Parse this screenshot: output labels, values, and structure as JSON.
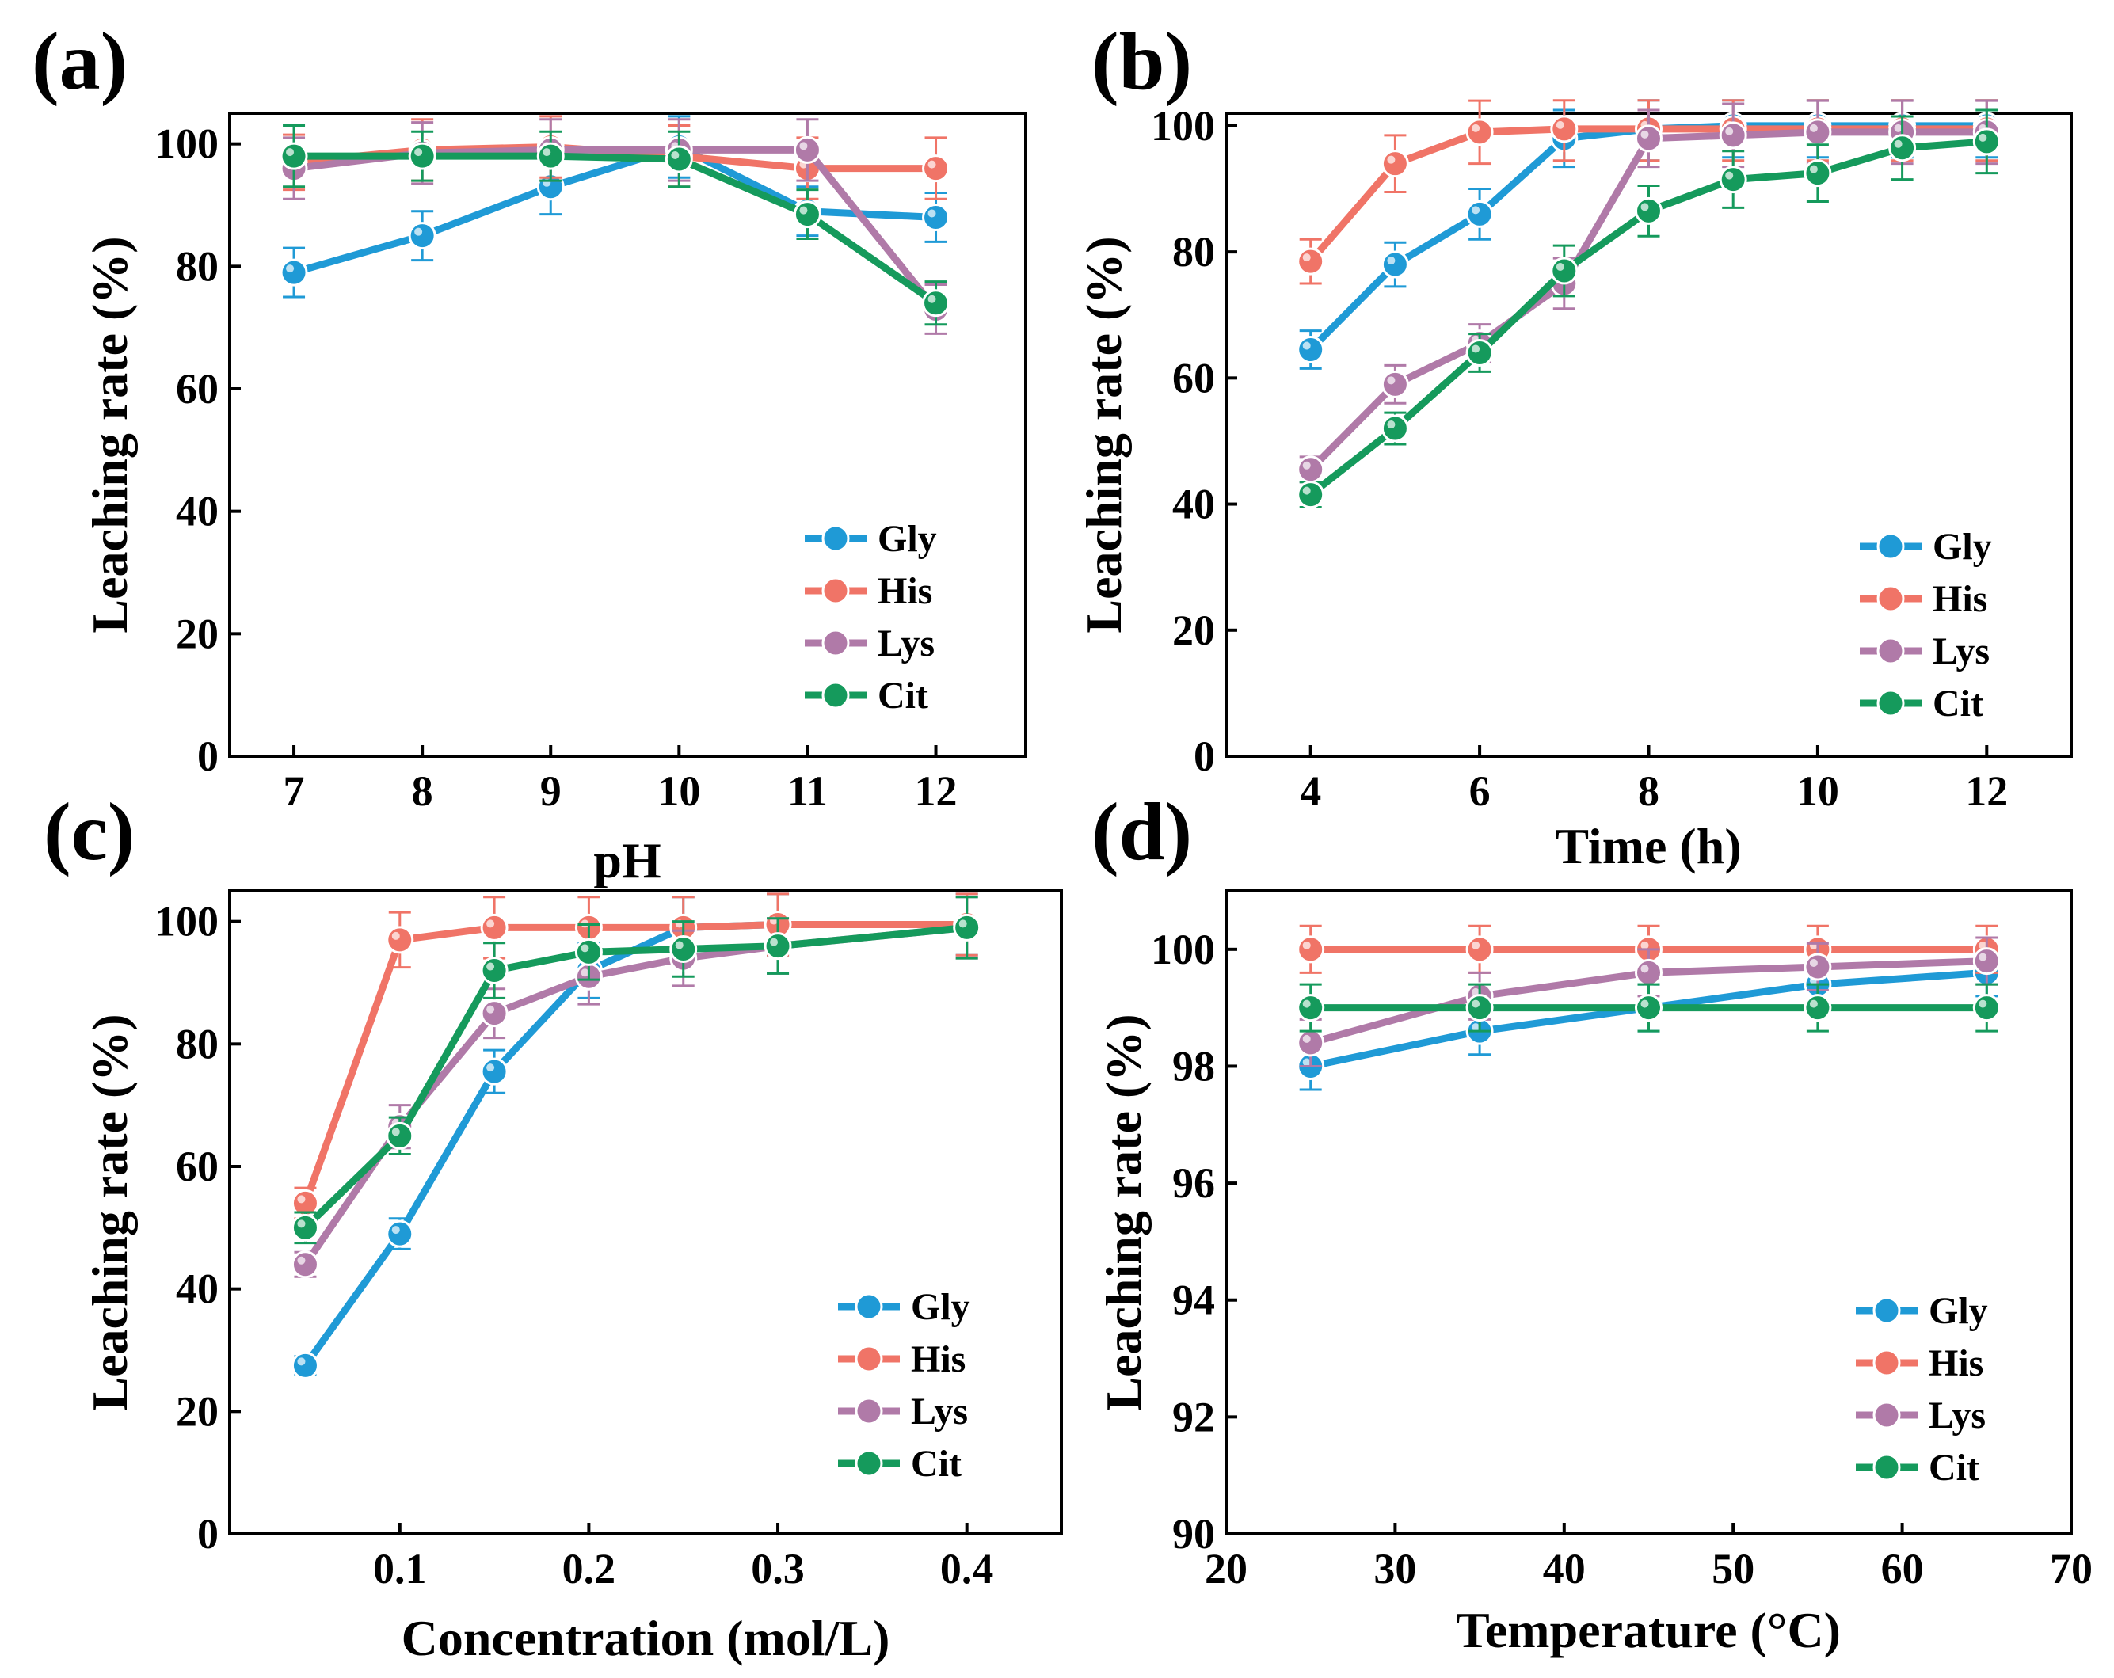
{
  "colors": {
    "Gly": "#1f9ad6",
    "His": "#f07467",
    "Lys": "#b07aa8",
    "Cit": "#159a5c"
  },
  "chart_data": [
    {
      "panel_label": "(a)",
      "type": "line",
      "xlabel": "pH",
      "ylabel": "Leaching rate (%)",
      "xlim": [
        6.5,
        12.7
      ],
      "ylim": [
        0,
        105
      ],
      "xticks": [
        7,
        8,
        9,
        10,
        11,
        12
      ],
      "xtick_labels": [
        "7",
        "8",
        "9",
        "10",
        "11",
        "12"
      ],
      "yticks": [
        0,
        20,
        40,
        60,
        80,
        100
      ],
      "ytick_labels": [
        "0",
        "20",
        "40",
        "60",
        "80",
        "100"
      ],
      "legend": "bottom-right",
      "x": [
        7,
        8,
        9,
        10,
        11,
        12
      ],
      "series": [
        {
          "name": "Gly",
          "values": [
            79,
            85,
            93,
            99.5,
            89,
            88
          ],
          "errors": [
            4,
            4,
            4.5,
            5,
            4,
            4
          ]
        },
        {
          "name": "His",
          "values": [
            97,
            99,
            99.5,
            98,
            96,
            96
          ],
          "errors": [
            4.5,
            5,
            5,
            5,
            5,
            5
          ]
        },
        {
          "name": "Lys",
          "values": [
            96,
            98.5,
            99,
            99,
            99,
            73
          ],
          "errors": [
            5,
            5,
            5,
            5,
            5,
            4
          ]
        },
        {
          "name": "Cit",
          "values": [
            98,
            98,
            98,
            97.5,
            88.5,
            74
          ],
          "errors": [
            5,
            4,
            4,
            4.5,
            4,
            3.5
          ]
        }
      ]
    },
    {
      "panel_label": "(b)",
      "type": "line",
      "xlabel": "Time (h)",
      "ylabel": "Leaching rate (%)",
      "xlim": [
        3,
        13
      ],
      "ylim": [
        0,
        102
      ],
      "xticks": [
        4,
        6,
        8,
        10,
        12
      ],
      "xtick_labels": [
        "4",
        "6",
        "8",
        "10",
        "12"
      ],
      "yticks": [
        0,
        20,
        40,
        60,
        80,
        100
      ],
      "ytick_labels": [
        "0",
        "20",
        "40",
        "60",
        "80",
        "100"
      ],
      "legend": "bottom-right",
      "x": [
        4,
        5,
        6,
        7,
        8,
        9,
        10,
        11,
        12
      ],
      "series": [
        {
          "name": "Gly",
          "values": [
            64.5,
            78,
            86,
            98,
            99.5,
            100,
            100,
            100,
            100
          ],
          "errors": [
            3,
            3.5,
            4,
            4.5,
            5,
            5,
            5,
            5,
            5
          ]
        },
        {
          "name": "His",
          "values": [
            78.5,
            94,
            99,
            99.5,
            99.5,
            99.5,
            99.5,
            99.5,
            99.5
          ],
          "errors": [
            3.5,
            4.5,
            5,
            5,
            5,
            5,
            5,
            5,
            5
          ]
        },
        {
          "name": "Lys",
          "values": [
            45.5,
            59,
            65.5,
            75,
            98,
            98.5,
            99,
            99,
            99
          ],
          "errors": [
            2,
            3,
            3,
            4,
            4.5,
            5,
            5,
            5,
            5
          ]
        },
        {
          "name": "Cit",
          "values": [
            41.5,
            52,
            64,
            77,
            86.5,
            91.5,
            92.5,
            96.5,
            97.5
          ],
          "errors": [
            2,
            2.5,
            3,
            4,
            4,
            4.5,
            4.5,
            5,
            5
          ]
        }
      ]
    },
    {
      "panel_label": "(c)",
      "type": "line",
      "xlabel": "Concentration (mol/L)",
      "ylabel": "Leaching rate (%)",
      "xlim": [
        0.01,
        0.45
      ],
      "ylim": [
        0,
        105
      ],
      "xticks": [
        0.1,
        0.2,
        0.3,
        0.4
      ],
      "xtick_labels": [
        "0.1",
        "0.2",
        "0.3",
        "0.4"
      ],
      "yticks": [
        0,
        20,
        40,
        60,
        80,
        100
      ],
      "ytick_labels": [
        "0",
        "20",
        "40",
        "60",
        "80",
        "100"
      ],
      "legend": "bottom-right",
      "x": [
        0.05,
        0.1,
        0.15,
        0.2,
        0.25,
        0.3,
        0.4
      ],
      "series": [
        {
          "name": "Gly",
          "values": [
            27.5,
            49,
            75.5,
            92,
            99,
            99.5,
            99.5
          ],
          "errors": [
            1.5,
            2.5,
            3.5,
            4.5,
            5,
            5,
            5
          ]
        },
        {
          "name": "His",
          "values": [
            54,
            97,
            99,
            99,
            99,
            99.5,
            99.5
          ],
          "errors": [
            2.5,
            4.5,
            5,
            5,
            5,
            5,
            5
          ]
        },
        {
          "name": "Lys",
          "values": [
            44,
            66.5,
            85,
            91,
            94,
            96,
            99
          ],
          "errors": [
            2,
            3.5,
            4,
            4.5,
            4.5,
            4.5,
            5
          ]
        },
        {
          "name": "Cit",
          "values": [
            50,
            65,
            92,
            95,
            95.5,
            96,
            99
          ],
          "errors": [
            2.5,
            3,
            4.5,
            4.5,
            4.5,
            4.5,
            5
          ]
        }
      ]
    },
    {
      "panel_label": "(d)",
      "type": "line",
      "xlabel": "Temperature (°C)",
      "ylabel": "Leaching rate (%)",
      "xlim": [
        20,
        70
      ],
      "ylim": [
        90,
        101
      ],
      "xticks": [
        20,
        30,
        40,
        50,
        60,
        70
      ],
      "xtick_labels": [
        "20",
        "30",
        "40",
        "50",
        "60",
        "70"
      ],
      "yticks": [
        90,
        92,
        94,
        96,
        98,
        100
      ],
      "ytick_labels": [
        "90",
        "92",
        "94",
        "96",
        "98",
        "100"
      ],
      "legend": "bottom-right",
      "x": [
        25,
        35,
        45,
        55,
        65
      ],
      "series": [
        {
          "name": "Gly",
          "values": [
            98,
            98.6,
            99,
            99.4,
            99.6
          ],
          "errors": [
            0.4,
            0.4,
            0.4,
            0.4,
            0.4
          ]
        },
        {
          "name": "His",
          "values": [
            100,
            100,
            100,
            100,
            100
          ],
          "errors": [
            0.4,
            0.4,
            0.4,
            0.4,
            0.4
          ]
        },
        {
          "name": "Lys",
          "values": [
            98.4,
            99.2,
            99.6,
            99.7,
            99.8
          ],
          "errors": [
            0.4,
            0.4,
            0.4,
            0.4,
            0.4
          ]
        },
        {
          "name": "Cit",
          "values": [
            99,
            99,
            99,
            99,
            99
          ],
          "errors": [
            0.4,
            0.4,
            0.4,
            0.4,
            0.4
          ]
        }
      ]
    }
  ]
}
